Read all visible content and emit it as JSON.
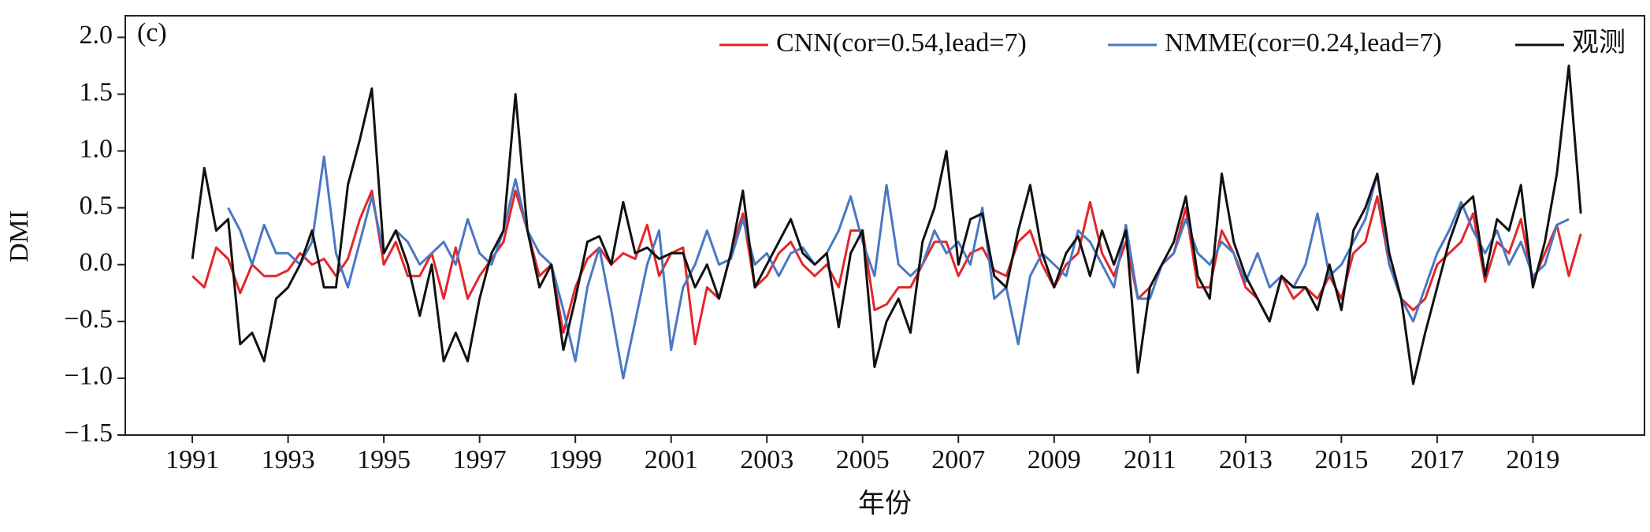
{
  "chart_data": {
    "type": "line",
    "annotation": "(c)",
    "xlabel": "年份",
    "ylabel": "DMI",
    "xlim": [
      1989.6,
      2021.33
    ],
    "ylim": [
      -1.5,
      2.19
    ],
    "xticks": [
      1991,
      1993,
      1995,
      1997,
      1999,
      2001,
      2003,
      2005,
      2007,
      2009,
      2011,
      2013,
      2015,
      2017,
      2019
    ],
    "yticks": [
      {
        "value": 2,
        "label": "2.0"
      },
      {
        "value": 1.5,
        "label": "1.5"
      },
      {
        "value": 1,
        "label": "1.0"
      },
      {
        "value": 0.5,
        "label": "0.5"
      },
      {
        "value": 0,
        "label": "0.0"
      },
      {
        "value": -0.5,
        "label": "−0.5"
      },
      {
        "value": -1,
        "label": "−1.0"
      },
      {
        "value": -1.5,
        "label": "−1.5"
      }
    ],
    "x": [
      1991,
      1991.25,
      1991.5,
      1991.75,
      1992,
      1992.25,
      1992.5,
      1992.75,
      1993,
      1993.25,
      1993.5,
      1993.75,
      1994,
      1994.25,
      1994.5,
      1994.75,
      1995,
      1995.25,
      1995.5,
      1995.75,
      1996,
      1996.25,
      1996.5,
      1996.75,
      1997,
      1997.25,
      1997.5,
      1997.75,
      1998,
      1998.25,
      1998.5,
      1998.75,
      1999,
      1999.25,
      1999.5,
      1999.75,
      2000,
      2000.25,
      2000.5,
      2000.75,
      2001,
      2001.25,
      2001.5,
      2001.75,
      2002,
      2002.25,
      2002.5,
      2002.75,
      2003,
      2003.25,
      2003.5,
      2003.75,
      2004,
      2004.25,
      2004.5,
      2004.75,
      2005,
      2005.25,
      2005.5,
      2005.75,
      2006,
      2006.25,
      2006.5,
      2006.75,
      2007,
      2007.25,
      2007.5,
      2007.75,
      2008,
      2008.25,
      2008.5,
      2008.75,
      2009,
      2009.25,
      2009.5,
      2009.75,
      2010,
      2010.25,
      2010.5,
      2010.75,
      2011,
      2011.25,
      2011.5,
      2011.75,
      2012,
      2012.25,
      2012.5,
      2012.75,
      2013,
      2013.25,
      2013.5,
      2013.75,
      2014,
      2014.25,
      2014.5,
      2014.75,
      2015,
      2015.25,
      2015.5,
      2015.75,
      2016,
      2016.25,
      2016.5,
      2016.75,
      2017,
      2017.25,
      2017.5,
      2017.75,
      2018,
      2018.25,
      2018.5,
      2018.75,
      2019,
      2019.25,
      2019.5,
      2019.75,
      2020
    ],
    "series": [
      {
        "name": "CNN(cor=0.54,lead=7)",
        "color": "#e3262b",
        "values": [
          -0.1,
          -0.2,
          0.15,
          0.05,
          -0.25,
          0.0,
          -0.1,
          -0.1,
          -0.05,
          0.1,
          0.0,
          0.05,
          -0.1,
          0.05,
          0.4,
          0.65,
          0.0,
          0.2,
          -0.1,
          -0.1,
          0.1,
          -0.3,
          0.15,
          -0.3,
          -0.1,
          0.05,
          0.2,
          0.65,
          0.3,
          -0.1,
          0.0,
          -0.6,
          -0.2,
          0.05,
          0.15,
          0.0,
          0.1,
          0.05,
          0.35,
          -0.1,
          0.1,
          0.15,
          -0.7,
          -0.2,
          -0.3,
          0.1,
          0.45,
          -0.2,
          -0.1,
          0.1,
          0.2,
          0.0,
          -0.1,
          0.0,
          -0.2,
          0.3,
          0.3,
          -0.4,
          -0.35,
          -0.2,
          -0.2,
          0.0,
          0.2,
          0.2,
          -0.1,
          0.1,
          0.15,
          -0.05,
          -0.1,
          0.2,
          0.3,
          0.0,
          -0.2,
          0.0,
          0.1,
          0.55,
          0.1,
          -0.1,
          0.2,
          -0.3,
          -0.2,
          0.0,
          0.1,
          0.5,
          -0.2,
          -0.2,
          0.3,
          0.1,
          -0.2,
          -0.3,
          -0.5,
          -0.1,
          -0.3,
          -0.2,
          -0.3,
          -0.1,
          -0.3,
          0.1,
          0.2,
          0.6,
          0.0,
          -0.3,
          -0.4,
          -0.3,
          0.0,
          0.1,
          0.2,
          0.45,
          -0.15,
          0.2,
          0.1,
          0.4,
          -0.15,
          0.1,
          0.35,
          -0.1,
          0.27
        ]
      },
      {
        "name": "NMME(cor=0.24,lead=7)",
        "color": "#4a78c2",
        "values": [
          null,
          null,
          null,
          0.5,
          0.3,
          0.0,
          0.35,
          0.1,
          0.1,
          0.0,
          0.2,
          0.95,
          0.1,
          -0.2,
          0.2,
          0.6,
          0.1,
          0.3,
          0.2,
          0.0,
          0.1,
          0.2,
          0.0,
          0.4,
          0.1,
          0.0,
          0.3,
          0.75,
          0.3,
          0.1,
          0.0,
          -0.4,
          -0.85,
          -0.2,
          0.15,
          -0.4,
          -1.0,
          -0.5,
          0.0,
          0.3,
          -0.75,
          -0.2,
          0.0,
          0.3,
          0.0,
          0.05,
          0.4,
          0.0,
          0.1,
          -0.1,
          0.1,
          0.15,
          0.0,
          0.1,
          0.3,
          0.6,
          0.2,
          -0.1,
          0.7,
          0.0,
          -0.1,
          0.0,
          0.3,
          0.1,
          0.2,
          0.0,
          0.5,
          -0.3,
          -0.2,
          -0.7,
          -0.1,
          0.1,
          0.0,
          -0.1,
          0.3,
          0.2,
          0.0,
          -0.2,
          0.35,
          -0.3,
          -0.3,
          0.0,
          0.1,
          0.4,
          0.1,
          0.0,
          0.2,
          0.1,
          -0.15,
          0.1,
          -0.2,
          -0.1,
          -0.2,
          0.0,
          0.45,
          -0.1,
          0.0,
          0.2,
          0.4,
          0.8,
          0.0,
          -0.3,
          -0.5,
          -0.2,
          0.1,
          0.3,
          0.55,
          0.3,
          0.1,
          0.3,
          0.0,
          0.2,
          -0.1,
          0.0,
          0.35,
          0.4,
          null
        ]
      },
      {
        "name": "观测",
        "color": "#111111",
        "values": [
          0.05,
          0.85,
          0.3,
          0.4,
          -0.7,
          -0.6,
          -0.85,
          -0.3,
          -0.2,
          0.0,
          0.3,
          -0.2,
          -0.2,
          0.7,
          1.1,
          1.55,
          0.1,
          0.3,
          0.0,
          -0.45,
          0.0,
          -0.85,
          -0.6,
          -0.85,
          -0.3,
          0.1,
          0.3,
          1.5,
          0.3,
          -0.2,
          0.0,
          -0.75,
          -0.3,
          0.2,
          0.25,
          0.0,
          0.55,
          0.1,
          0.15,
          0.05,
          0.1,
          0.1,
          -0.2,
          0.0,
          -0.3,
          0.1,
          0.65,
          -0.2,
          0.0,
          0.2,
          0.4,
          0.1,
          0.0,
          0.1,
          -0.55,
          0.1,
          0.3,
          -0.9,
          -0.5,
          -0.3,
          -0.6,
          0.2,
          0.5,
          1.0,
          0.0,
          0.4,
          0.45,
          -0.1,
          -0.2,
          0.3,
          0.7,
          0.1,
          -0.2,
          0.1,
          0.25,
          -0.1,
          0.3,
          0.0,
          0.3,
          -0.95,
          -0.2,
          0.0,
          0.2,
          0.6,
          -0.1,
          -0.3,
          0.8,
          0.2,
          -0.1,
          -0.3,
          -0.5,
          -0.1,
          -0.2,
          -0.2,
          -0.4,
          0.0,
          -0.4,
          0.3,
          0.5,
          0.8,
          0.1,
          -0.3,
          -1.05,
          -0.6,
          -0.2,
          0.2,
          0.5,
          0.6,
          -0.1,
          0.4,
          0.3,
          0.7,
          -0.2,
          0.2,
          0.8,
          1.75,
          0.45
        ]
      }
    ]
  }
}
